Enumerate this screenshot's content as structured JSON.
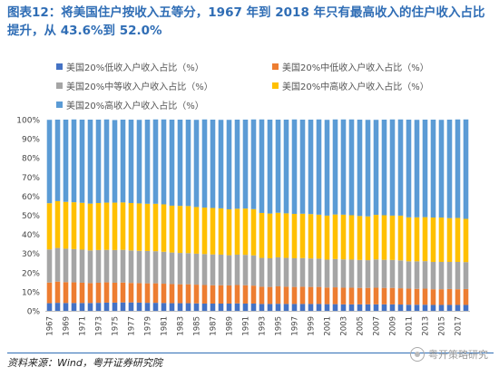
{
  "title": "图表12：将美国住户按收入五等分，1967 年到 2018 年只有最高收入的住户收入占比提升，从 43.6%到 52.0%",
  "source": "资料来源：Wind，粤开证券研究院",
  "watermark": "粤开策略研究",
  "colors": {
    "low": "#4472c4",
    "midlow": "#ed7d31",
    "mid": "#a5a5a5",
    "midhigh": "#ffc000",
    "high": "#5b9bd5"
  },
  "chart_data": {
    "type": "bar",
    "stacked": true,
    "title": "",
    "xlabel": "",
    "ylabel": "",
    "ylim": [
      0,
      100
    ],
    "yticks": [
      "0%",
      "10%",
      "20%",
      "30%",
      "40%",
      "50%",
      "60%",
      "70%",
      "80%",
      "90%",
      "100%"
    ],
    "x": [
      1967,
      1968,
      1969,
      1970,
      1971,
      1972,
      1973,
      1974,
      1975,
      1976,
      1977,
      1978,
      1979,
      1980,
      1981,
      1982,
      1983,
      1984,
      1985,
      1986,
      1987,
      1988,
      1989,
      1990,
      1991,
      1992,
      1993,
      1994,
      1995,
      1996,
      1997,
      1998,
      1999,
      2000,
      2001,
      2002,
      2003,
      2004,
      2005,
      2006,
      2007,
      2008,
      2009,
      2010,
      2011,
      2012,
      2013,
      2014,
      2015,
      2016,
      2017,
      2018
    ],
    "xtick_labels": [
      "1967",
      "1969",
      "1971",
      "1973",
      "1975",
      "1977",
      "1979",
      "1981",
      "1983",
      "1985",
      "1987",
      "1989",
      "1991",
      "1993",
      "1995",
      "1997",
      "1999",
      "2001",
      "2003",
      "2005",
      "2007",
      "2009",
      "2011",
      "2013",
      "2015",
      "2017"
    ],
    "legend_position": "top",
    "series": [
      {
        "key": "low",
        "name": "美国20%低收入户收入占比（%）",
        "values": [
          4.0,
          4.2,
          4.1,
          4.1,
          4.1,
          4.1,
          4.2,
          4.3,
          4.3,
          4.4,
          4.4,
          4.3,
          4.2,
          4.2,
          4.1,
          4.0,
          4.0,
          4.0,
          3.9,
          3.8,
          3.8,
          3.8,
          3.8,
          3.9,
          3.8,
          3.8,
          3.6,
          3.6,
          3.7,
          3.6,
          3.6,
          3.6,
          3.6,
          3.6,
          3.5,
          3.5,
          3.4,
          3.4,
          3.4,
          3.4,
          3.4,
          3.4,
          3.4,
          3.3,
          3.2,
          3.2,
          3.2,
          3.1,
          3.1,
          3.1,
          3.1,
          3.1
        ]
      },
      {
        "key": "midlow",
        "name": "美国20%中低收入户收入占比（%）",
        "values": [
          10.8,
          11.1,
          10.9,
          10.8,
          10.6,
          10.4,
          10.5,
          10.6,
          10.4,
          10.4,
          10.2,
          10.2,
          10.2,
          10.2,
          10.1,
          10.0,
          9.9,
          9.9,
          9.8,
          9.7,
          9.6,
          9.6,
          9.5,
          9.6,
          9.6,
          9.4,
          9.0,
          8.9,
          9.1,
          9.0,
          8.9,
          9.0,
          8.9,
          8.9,
          8.7,
          8.8,
          8.7,
          8.7,
          8.6,
          8.6,
          8.7,
          8.6,
          8.6,
          8.5,
          8.4,
          8.3,
          8.4,
          8.2,
          8.2,
          8.3,
          8.2,
          8.3
        ]
      },
      {
        "key": "mid",
        "name": "美国20%中等收入户收入占比（%）",
        "values": [
          17.3,
          17.6,
          17.5,
          17.4,
          17.3,
          17.1,
          17.1,
          17.0,
          17.1,
          17.1,
          17.0,
          16.9,
          16.9,
          16.8,
          16.7,
          16.5,
          16.4,
          16.3,
          16.2,
          16.2,
          16.1,
          16.0,
          15.8,
          15.9,
          15.9,
          15.8,
          15.1,
          15.0,
          15.2,
          15.1,
          15.0,
          15.0,
          14.9,
          14.8,
          14.6,
          14.8,
          14.8,
          14.7,
          14.6,
          14.5,
          14.8,
          14.7,
          14.6,
          14.6,
          14.3,
          14.4,
          14.4,
          14.3,
          14.3,
          14.2,
          14.3,
          14.1
        ]
      },
      {
        "key": "midhigh",
        "name": "美国20%中高收入户收入占比（%）",
        "values": [
          24.2,
          24.5,
          24.5,
          24.5,
          24.5,
          24.5,
          24.6,
          24.7,
          24.8,
          24.8,
          24.8,
          24.8,
          24.7,
          24.8,
          24.8,
          24.5,
          24.6,
          24.6,
          24.4,
          24.3,
          24.3,
          24.2,
          24.0,
          24.0,
          24.2,
          24.2,
          23.5,
          23.4,
          23.3,
          23.3,
          23.2,
          23.2,
          23.2,
          23.0,
          23.0,
          23.3,
          23.4,
          23.2,
          23.0,
          22.9,
          23.3,
          23.3,
          23.2,
          23.4,
          23.0,
          23.0,
          23.0,
          23.2,
          23.2,
          22.9,
          23.0,
          22.6
        ]
      },
      {
        "key": "high",
        "name": "美国20%高收入户收入占比（%）",
        "values": [
          43.6,
          42.6,
          43.0,
          43.3,
          43.5,
          43.9,
          43.6,
          43.5,
          43.2,
          43.3,
          43.6,
          43.7,
          44.0,
          44.1,
          44.4,
          45.0,
          45.1,
          45.2,
          45.6,
          46.1,
          46.2,
          46.3,
          46.8,
          46.6,
          46.5,
          46.9,
          48.9,
          49.1,
          48.7,
          49.0,
          49.4,
          49.2,
          49.4,
          49.8,
          50.1,
          49.7,
          49.8,
          50.1,
          50.4,
          50.5,
          49.7,
          50.0,
          50.3,
          50.3,
          51.1,
          51.0,
          51.0,
          51.2,
          51.1,
          51.5,
          51.5,
          52.0
        ]
      }
    ]
  }
}
